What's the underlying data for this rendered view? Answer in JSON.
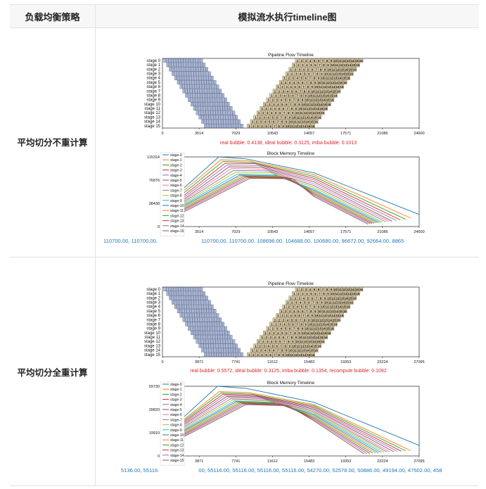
{
  "table": {
    "header_col1": "负载均衡策略",
    "header_col2": "模拟流水执行timeline图"
  },
  "rows": [
    {
      "strategy": "平均切分不重计算",
      "bubble_text": "real bubble: 0.4138, ideal bubble: 0.3125, imba bubble: 0.1013",
      "memory_values_text": "110700.00, 110700.00, 110700.00, 110700.00, 110700.00, 110700.00, 108696.00, 104688.00, 100680.00, 96672.00, 92664.00, 8865",
      "memory_strip_hidden_prefix": "110700.00, 110700.00, 110700.00, 110700.00, "
    },
    {
      "strategy": "平均切分全重计算",
      "bubble_text": "real bubble: 0.5572, ideal bubble: 0.3125, imba bubble: 0.1354, recompute bubble: 0.1092",
      "memory_values_text": "5136.00, 55116.00, 55116.00, 55116.00, 55116.00, 55116.00, 54270.00, 52578.00, 50886.00, 49194.00, 47502.00, 458",
      "memory_strip_hidden_prefix": "5136.00, 55116 "
    }
  ],
  "chart_data": [
    {
      "type": "gantt",
      "title": "Pipeline Flow Timeline",
      "stages": [
        "stage 0",
        "stage 1",
        "stage 2",
        "stage 3",
        "stage 4",
        "stage 5",
        "stage 6",
        "stage 7",
        "stage 8",
        "stage 9",
        "stage 10",
        "stage 11",
        "stage 12",
        "stage 13",
        "stage 14",
        "stage 15"
      ],
      "xticks": [
        0,
        3514,
        7029,
        10543,
        14057,
        17571,
        21086,
        24600
      ],
      "xlim": [
        0,
        24600
      ],
      "forward_color": "#aab6d3",
      "backward_color": "#d8c9a6",
      "microbatch_labels": [
        "1",
        "2",
        "3",
        "4",
        "5",
        "6",
        "7",
        "8",
        "9",
        "10",
        "11",
        "12",
        "13",
        "14",
        "15",
        "16"
      ]
    },
    {
      "type": "line",
      "title": "Block Memory Timeline",
      "yticks": [
        0,
        38438,
        76876,
        115314
      ],
      "ylim": [
        0,
        115314
      ],
      "xticks": [
        3514,
        7029,
        10543,
        14057,
        17571,
        21086,
        24600
      ],
      "xlim": [
        0,
        24600
      ],
      "legend_position": "left",
      "series": [
        {
          "name": "stage-0",
          "color": "#1f77b4",
          "points": [
            [
              1800,
              60000
            ],
            [
              5400,
              115314
            ],
            [
              8000,
              112000
            ],
            [
              14500,
              89000
            ],
            [
              24600,
              20000
            ]
          ]
        },
        {
          "name": "stage-1",
          "color": "#ff7f0e",
          "points": [
            [
              1800,
              56000
            ],
            [
              5600,
              110700
            ],
            [
              8300,
              108700
            ],
            [
              14500,
              86000
            ],
            [
              23800,
              14000
            ]
          ]
        },
        {
          "name": "stage-2",
          "color": "#2ca02c",
          "points": [
            [
              1800,
              52000
            ],
            [
              5800,
              108000
            ],
            [
              8600,
              106000
            ],
            [
              14500,
              83000
            ],
            [
              23300,
              12000
            ]
          ]
        },
        {
          "name": "stage-3",
          "color": "#d62728",
          "points": [
            [
              1800,
              48000
            ],
            [
              6000,
              105000
            ],
            [
              8900,
              104000
            ],
            [
              14500,
              80000
            ],
            [
              22800,
              11000
            ]
          ]
        },
        {
          "name": "stage-4",
          "color": "#9467bd",
          "points": [
            [
              1800,
              45000
            ],
            [
              6200,
              102000
            ],
            [
              9200,
              101000
            ],
            [
              14500,
              77000
            ],
            [
              22400,
              10000
            ]
          ]
        },
        {
          "name": "stage-5",
          "color": "#8c564b",
          "points": [
            [
              1800,
              42000
            ],
            [
              6400,
              99000
            ],
            [
              9500,
              98000
            ],
            [
              14500,
              74000
            ],
            [
              22000,
              9000
            ]
          ]
        },
        {
          "name": "stage-6",
          "color": "#e377c2",
          "points": [
            [
              1800,
              40000
            ],
            [
              6600,
              96000
            ],
            [
              9800,
              95000
            ],
            [
              14500,
              71000
            ],
            [
              21700,
              8500
            ]
          ]
        },
        {
          "name": "stage-7",
          "color": "#7f7f7f",
          "points": [
            [
              1800,
              38000
            ],
            [
              6800,
              93000
            ],
            [
              10100,
              92000
            ],
            [
              14500,
              68000
            ],
            [
              21400,
              8000
            ]
          ]
        },
        {
          "name": "stage-8",
          "color": "#bcbd22",
          "points": [
            [
              1800,
              36000
            ],
            [
              7000,
              90000
            ],
            [
              10400,
              89000
            ],
            [
              14500,
              65000
            ],
            [
              21100,
              7500
            ]
          ]
        },
        {
          "name": "stage-9",
          "color": "#17becf",
          "points": [
            [
              1800,
              34000
            ],
            [
              7200,
              87000
            ],
            [
              10700,
              86000
            ],
            [
              14500,
              62000
            ],
            [
              20900,
              7000
            ]
          ]
        },
        {
          "name": "stage-10",
          "color": "#1f77b4",
          "points": [
            [
              1800,
              32000
            ],
            [
              7400,
              85000
            ],
            [
              11000,
              84000
            ],
            [
              14500,
              60000
            ],
            [
              20700,
              6500
            ]
          ]
        },
        {
          "name": "stage-11",
          "color": "#ff7f0e",
          "points": [
            [
              1800,
              30000
            ],
            [
              7600,
              84000
            ],
            [
              11300,
              83000
            ],
            [
              14500,
              58000
            ],
            [
              20500,
              6000
            ]
          ]
        },
        {
          "name": "stage-12",
          "color": "#2ca02c",
          "points": [
            [
              1800,
              28000
            ],
            [
              7800,
              83000
            ],
            [
              11600,
              82000
            ],
            [
              14500,
              56000
            ],
            [
              20300,
              5500
            ]
          ]
        },
        {
          "name": "stage-13",
          "color": "#d62728",
          "points": [
            [
              1800,
              26000
            ],
            [
              8000,
              82000
            ],
            [
              11900,
              81000
            ],
            [
              14500,
              54000
            ],
            [
              20100,
              5000
            ]
          ]
        },
        {
          "name": "stage-14",
          "color": "#9467bd",
          "points": [
            [
              1800,
              24000
            ],
            [
              8200,
              81000
            ],
            [
              12200,
              80000
            ],
            [
              14500,
              52000
            ],
            [
              19900,
              4500
            ]
          ]
        },
        {
          "name": "stage-15",
          "color": "#8c564b",
          "points": [
            [
              1800,
              22000
            ],
            [
              8400,
              80000
            ],
            [
              12500,
              79000
            ],
            [
              14500,
              50000
            ],
            [
              19700,
              4000
            ]
          ]
        }
      ]
    },
    {
      "type": "gantt",
      "title": "Pipeline Flow Timeline",
      "stages": [
        "stage 0",
        "stage 1",
        "stage 2",
        "stage 3",
        "stage 4",
        "stage 5",
        "stage 6",
        "stage 7",
        "stage 8",
        "stage 9",
        "stage 10",
        "stage 11",
        "stage 12",
        "stage 13",
        "stage 14",
        "stage 15"
      ],
      "xticks": [
        0,
        3871,
        7741,
        11612,
        15483,
        19353,
        23224,
        27095
      ],
      "xlim": [
        0,
        27095
      ],
      "forward_color": "#aab6d3",
      "backward_color": "#d8c9a6",
      "microbatch_labels": [
        "1",
        "2",
        "3",
        "4",
        "5",
        "6",
        "7",
        "8",
        "9",
        "10",
        "11",
        "12",
        "13",
        "14",
        "15",
        "16"
      ]
    },
    {
      "type": "line",
      "title": "Block Memory Timeline",
      "yticks": [
        0,
        19910,
        39820,
        59730
      ],
      "ylim": [
        0,
        59730
      ],
      "xticks": [
        3871,
        7741,
        11612,
        15483,
        19353,
        23224,
        27095
      ],
      "xlim": [
        0,
        27095
      ],
      "legend_position": "left",
      "series": [
        {
          "name": "stage-0",
          "color": "#1f77b4",
          "points": [
            [
              1800,
              30000
            ],
            [
              5800,
              59730
            ],
            [
              8800,
              58000
            ],
            [
              16000,
              46000
            ],
            [
              27095,
              9000
            ]
          ]
        },
        {
          "name": "stage-1",
          "color": "#ff7f0e",
          "points": [
            [
              1800,
              28500
            ],
            [
              6000,
              55116
            ],
            [
              9100,
              54270
            ],
            [
              16000,
              44000
            ],
            [
              26200,
              4500
            ]
          ]
        },
        {
          "name": "stage-2",
          "color": "#2ca02c",
          "points": [
            [
              1800,
              27500
            ],
            [
              6200,
              54000
            ],
            [
              9400,
              53000
            ],
            [
              16000,
              43000
            ],
            [
              25700,
              4300
            ]
          ]
        },
        {
          "name": "stage-3",
          "color": "#d62728",
          "points": [
            [
              1800,
              26500
            ],
            [
              6400,
              53000
            ],
            [
              9700,
              52000
            ],
            [
              16000,
              42000
            ],
            [
              25200,
              4100
            ]
          ]
        },
        {
          "name": "stage-4",
          "color": "#9467bd",
          "points": [
            [
              1800,
              25500
            ],
            [
              6600,
              52000
            ],
            [
              10000,
              51000
            ],
            [
              16000,
              41000
            ],
            [
              24800,
              3900
            ]
          ]
        },
        {
          "name": "stage-5",
          "color": "#8c564b",
          "points": [
            [
              1800,
              24500
            ],
            [
              6800,
              51000
            ],
            [
              10300,
              50000
            ],
            [
              16000,
              40000
            ],
            [
              24400,
              3700
            ]
          ]
        },
        {
          "name": "stage-6",
          "color": "#e377c2",
          "points": [
            [
              1800,
              23500
            ],
            [
              7000,
              50000
            ],
            [
              10600,
              49000
            ],
            [
              16000,
              39000
            ],
            [
              24000,
              3500
            ]
          ]
        },
        {
          "name": "stage-7",
          "color": "#7f7f7f",
          "points": [
            [
              1800,
              22500
            ],
            [
              7200,
              49000
            ],
            [
              10900,
              48000
            ],
            [
              16000,
              38000
            ],
            [
              23700,
              3300
            ]
          ]
        },
        {
          "name": "stage-8",
          "color": "#bcbd22",
          "points": [
            [
              1800,
              21500
            ],
            [
              7400,
              48000
            ],
            [
              11200,
              47000
            ],
            [
              16000,
              37000
            ],
            [
              23400,
              3100
            ]
          ]
        },
        {
          "name": "stage-9",
          "color": "#17becf",
          "points": [
            [
              1800,
              20500
            ],
            [
              7600,
              47000
            ],
            [
              11500,
              46000
            ],
            [
              16000,
              36000
            ],
            [
              23100,
              2900
            ]
          ]
        },
        {
          "name": "stage-10",
          "color": "#1f77b4",
          "points": [
            [
              1800,
              19500
            ],
            [
              7800,
              46500
            ],
            [
              11800,
              45500
            ],
            [
              16000,
              35000
            ],
            [
              22800,
              2700
            ]
          ]
        },
        {
          "name": "stage-11",
          "color": "#ff7f0e",
          "points": [
            [
              1800,
              18500
            ],
            [
              8000,
              46000
            ],
            [
              12100,
              45000
            ],
            [
              16000,
              34000
            ],
            [
              22500,
              2500
            ]
          ]
        },
        {
          "name": "stage-12",
          "color": "#2ca02c",
          "points": [
            [
              1800,
              17500
            ],
            [
              8200,
              45500
            ],
            [
              12400,
              44500
            ],
            [
              16000,
              33000
            ],
            [
              22200,
              2300
            ]
          ]
        },
        {
          "name": "stage-13",
          "color": "#d62728",
          "points": [
            [
              1800,
              16500
            ],
            [
              8400,
              45000
            ],
            [
              12700,
              44000
            ],
            [
              16000,
              32000
            ],
            [
              21900,
              2100
            ]
          ]
        },
        {
          "name": "stage-14",
          "color": "#9467bd",
          "points": [
            [
              1800,
              15500
            ],
            [
              8600,
              44500
            ],
            [
              13000,
              43500
            ],
            [
              16000,
              31000
            ],
            [
              21600,
              1900
            ]
          ]
        },
        {
          "name": "stage-15",
          "color": "#8c564b",
          "points": [
            [
              1800,
              14500
            ],
            [
              8800,
              44000
            ],
            [
              13300,
              43000
            ],
            [
              16000,
              30000
            ],
            [
              21300,
              1700
            ]
          ]
        }
      ]
    }
  ]
}
